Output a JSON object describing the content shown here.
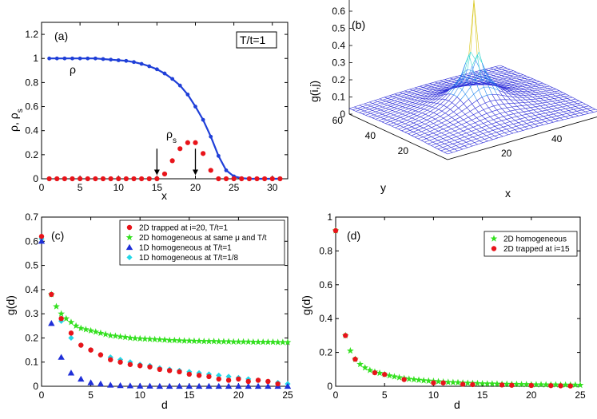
{
  "chart_data": [
    {
      "panel": "a",
      "type": "scatter",
      "panel_label": "(a)",
      "annotation_box": "T/t=1",
      "xlabel": "x",
      "ylabel": "ρ, ρ_s",
      "ylabel_main": "ρ, ρ",
      "ylabel_sub": "s",
      "xlim": [
        0,
        32
      ],
      "ylim": [
        0,
        1.3
      ],
      "xticks": [
        "0",
        "5",
        "10",
        "15",
        "20",
        "25",
        "30"
      ],
      "xtick_values": [
        0,
        5,
        10,
        15,
        20,
        25,
        30
      ],
      "yticks": [
        "0",
        "0.2",
        "0.4",
        "0.6",
        "0.8",
        "1",
        "1.2"
      ],
      "ytick_values": [
        0,
        0.2,
        0.4,
        0.6,
        0.8,
        1.0,
        1.2
      ],
      "grid": false,
      "series": [
        {
          "name": "ρ",
          "color": "#1f3fd8",
          "style": "line+dots",
          "x": [
            1,
            2,
            3,
            4,
            5,
            6,
            7,
            8,
            9,
            10,
            11,
            12,
            13,
            14,
            15,
            16,
            17,
            18,
            19,
            20,
            21,
            22,
            23,
            24,
            25,
            26,
            27,
            28,
            29,
            30,
            31
          ],
          "y": [
            1.0,
            1.0,
            1.0,
            1.0,
            1.0,
            1.0,
            1.0,
            0.995,
            0.99,
            0.985,
            0.98,
            0.97,
            0.955,
            0.935,
            0.91,
            0.875,
            0.83,
            0.775,
            0.7,
            0.6,
            0.49,
            0.35,
            0.19,
            0.07,
            0.02,
            0.005,
            0.0,
            0.0,
            0.0,
            0.0,
            0.0
          ]
        },
        {
          "name": "ρ_s",
          "label_main": "ρ",
          "label_sub": "s",
          "color": "#e8141a",
          "style": "dots",
          "x": [
            1,
            2,
            3,
            4,
            5,
            6,
            7,
            8,
            9,
            10,
            11,
            12,
            13,
            14,
            15,
            16,
            17,
            18,
            19,
            20,
            21,
            22,
            23,
            24,
            25,
            26,
            27,
            28,
            29,
            30,
            31
          ],
          "y": [
            0,
            0,
            0,
            0,
            0,
            0,
            0,
            0,
            0,
            0,
            0,
            0,
            0,
            0,
            0,
            0.04,
            0.15,
            0.25,
            0.3,
            0.3,
            0.21,
            0.07,
            0,
            0,
            0,
            0,
            0,
            0,
            0,
            0,
            0
          ]
        }
      ],
      "arrows": [
        {
          "x": 15,
          "y_from": 0.25,
          "y_to": 0.03
        },
        {
          "x": 20,
          "y_from": 0.25,
          "y_to": 0.03
        }
      ]
    },
    {
      "panel": "b",
      "type": "surface",
      "panel_label": "(b)",
      "xlabel": "x",
      "ylabel": "y",
      "zlabel": "g(i,j)",
      "zticks": [
        "0",
        "0.1",
        "0.2",
        "0.3",
        "0.4",
        "0.5",
        "0.6"
      ],
      "xticks": [
        "20",
        "40",
        "60"
      ],
      "yticks": [
        "20",
        "40",
        "60"
      ],
      "xlim": [
        0,
        60
      ],
      "ylim": [
        0,
        60
      ],
      "zlim": [
        0,
        0.65
      ],
      "surface_color": "#2b2bd8"
    },
    {
      "panel": "c",
      "type": "scatter",
      "panel_label": "(c)",
      "xlabel": "d",
      "ylabel": "g(d)",
      "xlim": [
        0,
        25
      ],
      "ylim": [
        0,
        0.7
      ],
      "xticks": [
        "0",
        "5",
        "10",
        "15",
        "20",
        "25"
      ],
      "xtick_values": [
        0,
        5,
        10,
        15,
        20,
        25
      ],
      "yticks": [
        "0",
        "0.1",
        "0.2",
        "0.3",
        "0.4",
        "0.5",
        "0.6",
        "0.7"
      ],
      "ytick_values": [
        0,
        0.1,
        0.2,
        0.3,
        0.4,
        0.5,
        0.6,
        0.7
      ],
      "legend_position": "top-right",
      "series": [
        {
          "name": "2D trapped at i=20, T/t=1",
          "marker": "circle",
          "color": "#e8141a",
          "x": [
            0,
            1,
            2,
            3,
            4,
            5,
            6,
            7,
            8,
            9,
            10,
            11,
            12,
            13,
            14,
            15,
            16,
            17,
            18,
            19,
            20,
            21,
            22,
            23,
            24
          ],
          "y": [
            0.62,
            0.38,
            0.28,
            0.22,
            0.17,
            0.15,
            0.13,
            0.11,
            0.1,
            0.09,
            0.085,
            0.08,
            0.07,
            0.065,
            0.06,
            0.05,
            0.045,
            0.04,
            0.03,
            0.025,
            0.03,
            0.02,
            0.025,
            0.02,
            0.01
          ]
        },
        {
          "name": "2D homogeneous at same μ and T/t",
          "marker": "star",
          "color": "#33e01f",
          "x": [
            1,
            1.5,
            2,
            2.5,
            3,
            3.5,
            4,
            4.5,
            5,
            5.5,
            6,
            6.5,
            7,
            7.5,
            8,
            8.5,
            9,
            9.5,
            10,
            10.5,
            11,
            11.5,
            12,
            12.5,
            13,
            13.5,
            14,
            14.5,
            15,
            15.5,
            16,
            16.5,
            17,
            17.5,
            18,
            18.5,
            19,
            19.5,
            20,
            20.5,
            21,
            21.5,
            22,
            22.5,
            23,
            23.5,
            24,
            24.5,
            25
          ],
          "y": [
            0.38,
            0.33,
            0.3,
            0.28,
            0.265,
            0.25,
            0.24,
            0.235,
            0.23,
            0.225,
            0.22,
            0.215,
            0.21,
            0.208,
            0.205,
            0.203,
            0.2,
            0.198,
            0.197,
            0.196,
            0.195,
            0.194,
            0.193,
            0.192,
            0.19,
            0.19,
            0.189,
            0.188,
            0.188,
            0.187,
            0.187,
            0.186,
            0.186,
            0.186,
            0.185,
            0.185,
            0.185,
            0.184,
            0.184,
            0.184,
            0.184,
            0.183,
            0.183,
            0.183,
            0.183,
            0.183,
            0.182,
            0.182,
            0.182
          ]
        },
        {
          "name": "1D homogeneous at T/t=1",
          "marker": "triangle",
          "color": "#1f2fd8",
          "x": [
            0,
            1,
            2,
            3,
            4,
            5,
            6,
            7,
            8,
            9,
            10,
            11,
            12,
            13,
            14,
            15,
            16,
            17,
            18,
            19,
            20,
            21,
            22,
            23,
            24,
            25
          ],
          "y": [
            0.6,
            0.26,
            0.12,
            0.055,
            0.03,
            0.015,
            0.01,
            0.005,
            0.003,
            0.002,
            0.001,
            0.001,
            0,
            0,
            0,
            0,
            0,
            0,
            0,
            0,
            0,
            0,
            0,
            0,
            0,
            0
          ]
        },
        {
          "name": "1D homogeneous at T/t=1/8",
          "marker": "diamond",
          "color": "#22d8e8",
          "x": [
            0,
            1,
            2,
            3,
            4,
            5,
            6,
            7,
            8,
            9,
            10,
            11,
            12,
            13,
            14,
            15,
            16,
            17,
            18,
            19,
            20,
            21,
            22,
            23,
            24,
            25
          ],
          "y": [
            0.61,
            0.38,
            0.27,
            0.2,
            0.17,
            0.15,
            0.13,
            0.12,
            0.11,
            0.1,
            0.09,
            0.085,
            0.075,
            0.07,
            0.065,
            0.06,
            0.055,
            0.05,
            0.045,
            0.04,
            0.035,
            0.03,
            0.025,
            0.02,
            0.015,
            0.01
          ]
        }
      ]
    },
    {
      "panel": "d",
      "type": "scatter",
      "panel_label": "(d)",
      "xlabel": "d",
      "ylabel": "g(d)",
      "xlim": [
        0,
        25
      ],
      "ylim": [
        0,
        1.0
      ],
      "xticks": [
        "0",
        "5",
        "10",
        "15",
        "20",
        "25"
      ],
      "xtick_values": [
        0,
        5,
        10,
        15,
        20,
        25
      ],
      "yticks": [
        "0",
        "0.2",
        "0.4",
        "0.6",
        "0.8",
        "1"
      ],
      "ytick_values": [
        0,
        0.2,
        0.4,
        0.6,
        0.8,
        1.0
      ],
      "legend_position": "top-right",
      "series": [
        {
          "name": "2D homogeneous",
          "marker": "star",
          "color": "#33e01f",
          "x": [
            0,
            1,
            1.5,
            2,
            2.5,
            3,
            3.5,
            4,
            4.5,
            5,
            5.5,
            6,
            6.5,
            7,
            7.5,
            8,
            8.5,
            9,
            9.5,
            10,
            10.5,
            11,
            11.5,
            12,
            12.5,
            13,
            13.5,
            14,
            14.5,
            15,
            15.5,
            16,
            16.5,
            17,
            17.5,
            18,
            18.5,
            19,
            19.5,
            20,
            20.5,
            21,
            21.5,
            22,
            22.5,
            23,
            23.5,
            24,
            24.5,
            25
          ],
          "y": [
            0.92,
            0.3,
            0.21,
            0.16,
            0.13,
            0.11,
            0.095,
            0.085,
            0.078,
            0.07,
            0.063,
            0.057,
            0.052,
            0.047,
            0.043,
            0.04,
            0.037,
            0.034,
            0.032,
            0.03,
            0.028,
            0.026,
            0.024,
            0.023,
            0.022,
            0.02,
            0.019,
            0.018,
            0.017,
            0.016,
            0.015,
            0.015,
            0.014,
            0.013,
            0.013,
            0.012,
            0.012,
            0.011,
            0.011,
            0.01,
            0.01,
            0.01,
            0.009,
            0.009,
            0.009,
            0.008,
            0.008,
            0.008,
            0.008,
            0.007
          ]
        },
        {
          "name": "2D trapped at i=15",
          "marker": "circle",
          "color": "#e8141a",
          "x": [
            0,
            1,
            2,
            4,
            5,
            7,
            10,
            11,
            13,
            14,
            17,
            18,
            20,
            22,
            23,
            24
          ],
          "y": [
            0.92,
            0.3,
            0.16,
            0.08,
            0.07,
            0.04,
            0.02,
            0.02,
            0.012,
            0.01,
            0.008,
            0.006,
            0.005,
            0.004,
            0.003,
            0.002
          ]
        }
      ]
    }
  ]
}
